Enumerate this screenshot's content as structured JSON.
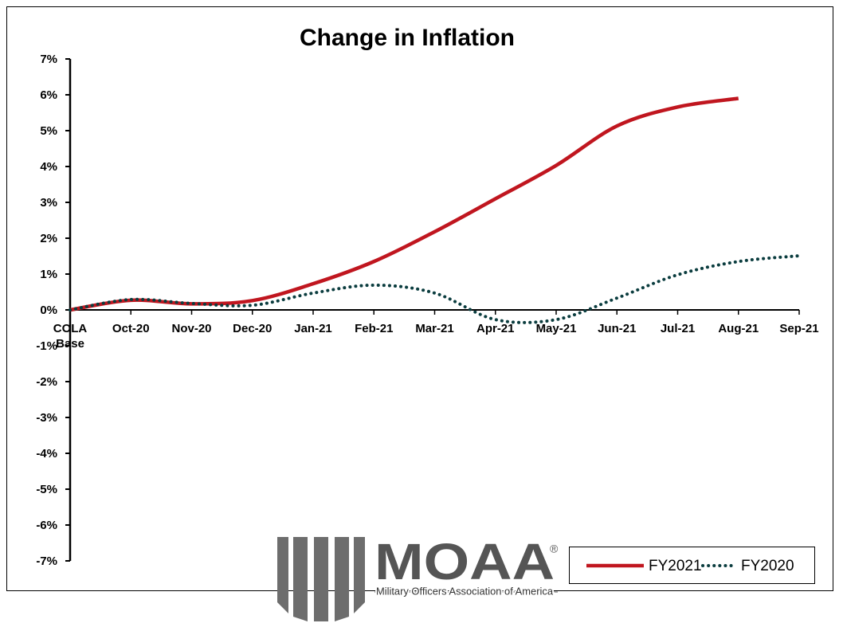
{
  "chart_data": {
    "type": "line",
    "title": "Change in Inflation",
    "categories": [
      "COLA Base",
      "Oct-20",
      "Nov-20",
      "Dec-20",
      "Jan-21",
      "Feb-21",
      "Mar-21",
      "Apr-21",
      "May-21",
      "Jun-21",
      "Jul-21",
      "Aug-21",
      "Sep-21"
    ],
    "series": [
      {
        "name": "FY2021",
        "color": "#c0161f",
        "style": "solid",
        "values": [
          0,
          0.27,
          0.17,
          0.26,
          0.73,
          1.35,
          2.18,
          3.1,
          4.03,
          5.13,
          5.66,
          5.9,
          null
        ]
      },
      {
        "name": "FY2020",
        "color": "#0b3d3f",
        "style": "dotted",
        "values": [
          0,
          0.29,
          0.18,
          0.13,
          0.47,
          0.69,
          0.47,
          -0.27,
          -0.27,
          0.33,
          0.98,
          1.35,
          1.51
        ]
      }
    ],
    "ylim": [
      -7,
      7
    ],
    "yticks": [
      {
        "value": -7,
        "label": "-7%"
      },
      {
        "value": -6,
        "label": "-6%"
      },
      {
        "value": -5,
        "label": "-5%"
      },
      {
        "value": -4,
        "label": "-4%"
      },
      {
        "value": -3,
        "label": "-3%"
      },
      {
        "value": -2,
        "label": "-2%"
      },
      {
        "value": -1,
        "label": "-1%"
      },
      {
        "value": 0,
        "label": "0%"
      },
      {
        "value": 1,
        "label": "1%"
      },
      {
        "value": 2,
        "label": "2%"
      },
      {
        "value": 3,
        "label": "3%"
      },
      {
        "value": 4,
        "label": "4%"
      },
      {
        "value": 5,
        "label": "5%"
      },
      {
        "value": 6,
        "label": "6%"
      },
      {
        "value": 7,
        "label": "7%"
      }
    ],
    "grid": false,
    "legend": "lower right"
  },
  "logo": {
    "name": "MOAA",
    "mark": "®",
    "tagline": "Military Officers Association of America"
  }
}
